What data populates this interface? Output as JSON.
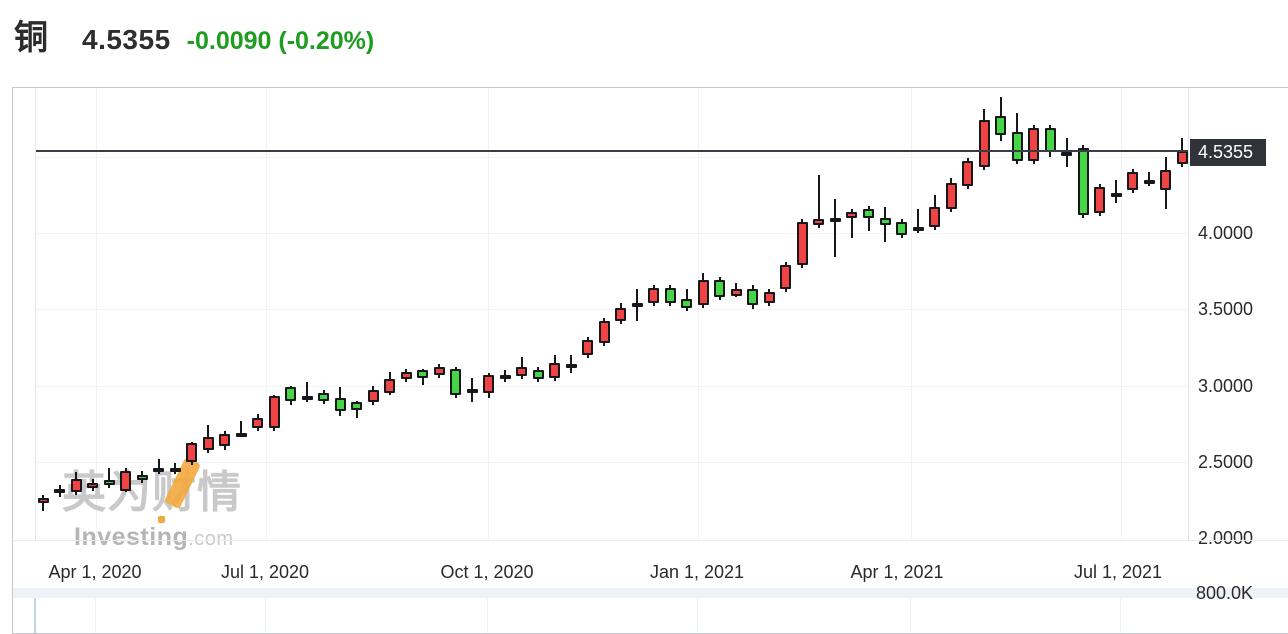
{
  "header": {
    "symbol": "铜",
    "price": "4.5355",
    "change_text": "-0.0090 (-0.20%)"
  },
  "price_marker": {
    "value": "4.5355"
  },
  "watermark": {
    "cn": "英为财情",
    "en": "Investing",
    "domain": ".com"
  },
  "colors": {
    "up": "#f04343",
    "down": "#44d644",
    "outline": "#16181c",
    "header_change_green": "#1f9d20",
    "price_line": "#3a3d45",
    "badge_bg": "#30333a",
    "badge_text": "#ffffff",
    "watermark_gray": "#c9c9c9",
    "watermark_orange": "#f2a83e"
  },
  "chart_data": {
    "type": "candlestick",
    "title": "铜 (Copper futures) weekly candlestick chart",
    "interval": "weekly",
    "up_color_convention": "red = up, green = down (Chinese convention)",
    "grid": true,
    "price_line": 4.5355,
    "price_line_label": "4.5355",
    "ylim": [
      1.99,
      4.95
    ],
    "y_ticks": [
      4.0,
      3.5,
      3.0,
      2.5,
      2.0
    ],
    "y_tick_labels": [
      "4.0000",
      "3.5000",
      "3.0000",
      "2.5000",
      "2.0000"
    ],
    "y_gridline_prices": [
      4.5,
      4.0,
      3.5,
      3.0,
      2.5
    ],
    "x_tick_labels": [
      "Apr 1, 2020",
      "Jul 1, 2020",
      "Oct 1, 2020",
      "Jan 1, 2021",
      "Apr 1, 2021",
      "Jul 1, 2021"
    ],
    "volume_axis_label": "800.0K",
    "candles": [
      {
        "d": "2020-03-23",
        "o": 2.23,
        "h": 2.28,
        "l": 2.18,
        "c": 2.26
      },
      {
        "d": "2020-03-30",
        "o": 2.3,
        "h": 2.35,
        "l": 2.27,
        "c": 2.32
      },
      {
        "d": "2020-04-06",
        "o": 2.3,
        "h": 2.43,
        "l": 2.28,
        "c": 2.39
      },
      {
        "d": "2020-04-13",
        "o": 2.33,
        "h": 2.39,
        "l": 2.31,
        "c": 2.36
      },
      {
        "d": "2020-04-20",
        "o": 2.38,
        "h": 2.46,
        "l": 2.33,
        "c": 2.35
      },
      {
        "d": "2020-04-27",
        "o": 2.31,
        "h": 2.46,
        "l": 2.3,
        "c": 2.44
      },
      {
        "d": "2020-05-04",
        "o": 2.41,
        "h": 2.44,
        "l": 2.36,
        "c": 2.38
      },
      {
        "d": "2020-05-11",
        "o": 2.44,
        "h": 2.52,
        "l": 2.42,
        "c": 2.46
      },
      {
        "d": "2020-05-18",
        "o": 2.45,
        "h": 2.49,
        "l": 2.42,
        "c": 2.46
      },
      {
        "d": "2020-05-25",
        "o": 2.5,
        "h": 2.63,
        "l": 2.48,
        "c": 2.62
      },
      {
        "d": "2020-06-01",
        "o": 2.58,
        "h": 2.74,
        "l": 2.56,
        "c": 2.66
      },
      {
        "d": "2020-06-08",
        "o": 2.6,
        "h": 2.7,
        "l": 2.58,
        "c": 2.68
      },
      {
        "d": "2020-06-15",
        "o": 2.68,
        "h": 2.77,
        "l": 2.66,
        "c": 2.69
      },
      {
        "d": "2020-06-22",
        "o": 2.72,
        "h": 2.81,
        "l": 2.7,
        "c": 2.79
      },
      {
        "d": "2020-06-29",
        "o": 2.72,
        "h": 2.94,
        "l": 2.7,
        "c": 2.93
      },
      {
        "d": "2020-07-06",
        "o": 2.99,
        "h": 3.0,
        "l": 2.87,
        "c": 2.9
      },
      {
        "d": "2020-07-13",
        "o": 2.93,
        "h": 3.02,
        "l": 2.89,
        "c": 2.92
      },
      {
        "d": "2020-07-20",
        "o": 2.95,
        "h": 2.97,
        "l": 2.88,
        "c": 2.9
      },
      {
        "d": "2020-07-27",
        "o": 2.92,
        "h": 2.99,
        "l": 2.8,
        "c": 2.83
      },
      {
        "d": "2020-08-03",
        "o": 2.89,
        "h": 2.9,
        "l": 2.79,
        "c": 2.84
      },
      {
        "d": "2020-08-10",
        "o": 2.89,
        "h": 3.0,
        "l": 2.87,
        "c": 2.97
      },
      {
        "d": "2020-08-17",
        "o": 2.95,
        "h": 3.09,
        "l": 2.94,
        "c": 3.04
      },
      {
        "d": "2020-08-24",
        "o": 3.04,
        "h": 3.11,
        "l": 3.02,
        "c": 3.09
      },
      {
        "d": "2020-08-31",
        "o": 3.1,
        "h": 3.11,
        "l": 3.0,
        "c": 3.05
      },
      {
        "d": "2020-09-07",
        "o": 3.07,
        "h": 3.14,
        "l": 3.05,
        "c": 3.12
      },
      {
        "d": "2020-09-14",
        "o": 3.11,
        "h": 3.12,
        "l": 2.92,
        "c": 2.94
      },
      {
        "d": "2020-09-21",
        "o": 2.98,
        "h": 3.05,
        "l": 2.89,
        "c": 2.97
      },
      {
        "d": "2020-09-28",
        "o": 2.95,
        "h": 3.08,
        "l": 2.92,
        "c": 3.07
      },
      {
        "d": "2020-10-05",
        "o": 3.06,
        "h": 3.1,
        "l": 3.02,
        "c": 3.07
      },
      {
        "d": "2020-10-12",
        "o": 3.06,
        "h": 3.19,
        "l": 3.04,
        "c": 3.12
      },
      {
        "d": "2020-10-19",
        "o": 3.1,
        "h": 3.12,
        "l": 3.02,
        "c": 3.04
      },
      {
        "d": "2020-10-26",
        "o": 3.05,
        "h": 3.2,
        "l": 3.03,
        "c": 3.15
      },
      {
        "d": "2020-11-02",
        "o": 3.13,
        "h": 3.2,
        "l": 3.08,
        "c": 3.14
      },
      {
        "d": "2020-11-09",
        "o": 3.2,
        "h": 3.32,
        "l": 3.18,
        "c": 3.3
      },
      {
        "d": "2020-11-16",
        "o": 3.28,
        "h": 3.44,
        "l": 3.26,
        "c": 3.42
      },
      {
        "d": "2020-11-23",
        "o": 3.42,
        "h": 3.54,
        "l": 3.4,
        "c": 3.51
      },
      {
        "d": "2020-11-30",
        "o": 3.52,
        "h": 3.63,
        "l": 3.42,
        "c": 3.54
      },
      {
        "d": "2020-12-07",
        "o": 3.54,
        "h": 3.66,
        "l": 3.52,
        "c": 3.64
      },
      {
        "d": "2020-12-14",
        "o": 3.64,
        "h": 3.66,
        "l": 3.52,
        "c": 3.54
      },
      {
        "d": "2020-12-21",
        "o": 3.57,
        "h": 3.63,
        "l": 3.49,
        "c": 3.51
      },
      {
        "d": "2020-12-28",
        "o": 3.53,
        "h": 3.74,
        "l": 3.51,
        "c": 3.69
      },
      {
        "d": "2021-01-04",
        "o": 3.69,
        "h": 3.71,
        "l": 3.56,
        "c": 3.58
      },
      {
        "d": "2021-01-11",
        "o": 3.59,
        "h": 3.67,
        "l": 3.58,
        "c": 3.63
      },
      {
        "d": "2021-01-18",
        "o": 3.63,
        "h": 3.66,
        "l": 3.5,
        "c": 3.53
      },
      {
        "d": "2021-01-25",
        "o": 3.54,
        "h": 3.63,
        "l": 3.52,
        "c": 3.61
      },
      {
        "d": "2021-02-01",
        "o": 3.63,
        "h": 3.81,
        "l": 3.61,
        "c": 3.79
      },
      {
        "d": "2021-02-08",
        "o": 3.79,
        "h": 4.09,
        "l": 3.77,
        "c": 4.07
      },
      {
        "d": "2021-02-15",
        "o": 4.05,
        "h": 4.38,
        "l": 4.03,
        "c": 4.09
      },
      {
        "d": "2021-02-22",
        "o": 4.1,
        "h": 4.22,
        "l": 3.84,
        "c": 4.07
      },
      {
        "d": "2021-03-01",
        "o": 4.1,
        "h": 4.16,
        "l": 3.97,
        "c": 4.14
      },
      {
        "d": "2021-03-08",
        "o": 4.16,
        "h": 4.18,
        "l": 4.01,
        "c": 4.1
      },
      {
        "d": "2021-03-15",
        "o": 4.1,
        "h": 4.17,
        "l": 3.94,
        "c": 4.05
      },
      {
        "d": "2021-03-22",
        "o": 4.07,
        "h": 4.09,
        "l": 3.97,
        "c": 3.99
      },
      {
        "d": "2021-03-29",
        "o": 4.03,
        "h": 4.16,
        "l": 4.0,
        "c": 4.04
      },
      {
        "d": "2021-04-05",
        "o": 4.04,
        "h": 4.25,
        "l": 4.02,
        "c": 4.17
      },
      {
        "d": "2021-04-12",
        "o": 4.16,
        "h": 4.36,
        "l": 4.14,
        "c": 4.33
      },
      {
        "d": "2021-04-19",
        "o": 4.31,
        "h": 4.49,
        "l": 4.29,
        "c": 4.47
      },
      {
        "d": "2021-04-26",
        "o": 4.43,
        "h": 4.81,
        "l": 4.41,
        "c": 4.74
      },
      {
        "d": "2021-05-03",
        "o": 4.77,
        "h": 4.89,
        "l": 4.6,
        "c": 4.64
      },
      {
        "d": "2021-05-10",
        "o": 4.66,
        "h": 4.79,
        "l": 4.45,
        "c": 4.47
      },
      {
        "d": "2021-05-17",
        "o": 4.47,
        "h": 4.71,
        "l": 4.45,
        "c": 4.69
      },
      {
        "d": "2021-05-24",
        "o": 4.69,
        "h": 4.71,
        "l": 4.5,
        "c": 4.53
      },
      {
        "d": "2021-05-31",
        "o": 4.52,
        "h": 4.62,
        "l": 4.43,
        "c": 4.53
      },
      {
        "d": "2021-06-07",
        "o": 4.56,
        "h": 4.58,
        "l": 4.1,
        "c": 4.12
      },
      {
        "d": "2021-06-14",
        "o": 4.13,
        "h": 4.32,
        "l": 4.11,
        "c": 4.3
      },
      {
        "d": "2021-06-21",
        "o": 4.24,
        "h": 4.35,
        "l": 4.2,
        "c": 4.26
      },
      {
        "d": "2021-06-28",
        "o": 4.28,
        "h": 4.42,
        "l": 4.26,
        "c": 4.4
      },
      {
        "d": "2021-07-05",
        "o": 4.35,
        "h": 4.4,
        "l": 4.31,
        "c": 4.32
      },
      {
        "d": "2021-07-12",
        "o": 4.28,
        "h": 4.5,
        "l": 4.16,
        "c": 4.41
      },
      {
        "d": "2021-07-19",
        "o": 4.45,
        "h": 4.62,
        "l": 4.43,
        "c": 4.5355
      }
    ]
  }
}
